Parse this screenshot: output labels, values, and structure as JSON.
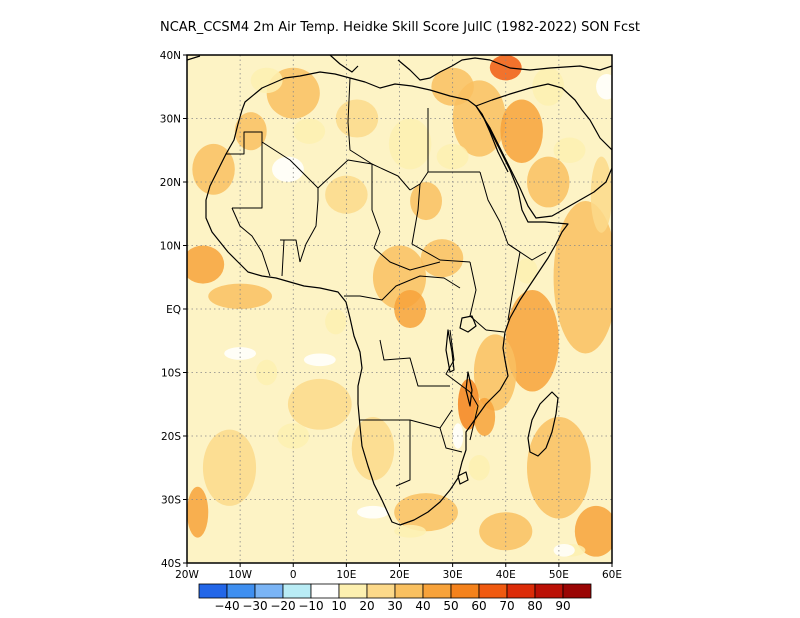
{
  "title": "NCAR_CCSM4  2m Air Temp. Heidke Skill Score JulIC (1982-2022) SON Fcst",
  "map": {
    "lon_range": [
      -20,
      60
    ],
    "lat_range": [
      -40,
      40
    ],
    "lon_ticks": [
      {
        "value": -20,
        "label": "20W"
      },
      {
        "value": -10,
        "label": "10W"
      },
      {
        "value": 0,
        "label": "0"
      },
      {
        "value": 10,
        "label": "10E"
      },
      {
        "value": 20,
        "label": "20E"
      },
      {
        "value": 30,
        "label": "30E"
      },
      {
        "value": 40,
        "label": "40E"
      },
      {
        "value": 50,
        "label": "50E"
      },
      {
        "value": 60,
        "label": "60E"
      }
    ],
    "lat_ticks": [
      {
        "value": 40,
        "label": "40N"
      },
      {
        "value": 30,
        "label": "30N"
      },
      {
        "value": 20,
        "label": "20N"
      },
      {
        "value": 10,
        "label": "10N"
      },
      {
        "value": 0,
        "label": "EQ"
      },
      {
        "value": -10,
        "label": "10S"
      },
      {
        "value": -20,
        "label": "20S"
      },
      {
        "value": -30,
        "label": "30S"
      },
      {
        "value": -40,
        "label": "40S"
      }
    ],
    "gridlines": "dotted",
    "background_color": "#fdf3c5"
  },
  "colorbar": {
    "colors": [
      "#2266e8",
      "#3f8ff0",
      "#7ab4f5",
      "#b9ecf5",
      "#ffffff",
      "#fdf0b0",
      "#fcd98a",
      "#f9c060",
      "#f7a23a",
      "#f4821c",
      "#f05a10",
      "#dc2c08",
      "#bb1106",
      "#9a0504"
    ],
    "labels": [
      "-40",
      "-30",
      "-20",
      "-10",
      "10",
      "20",
      "30",
      "40",
      "50",
      "60",
      "70",
      "80",
      "90"
    ]
  },
  "skill_patches": [
    {
      "lon": 55,
      "lat": 5,
      "rx": 6,
      "ry": 12,
      "level": 30
    },
    {
      "lon": 45,
      "lat": -5,
      "rx": 5,
      "ry": 8,
      "level": 40
    },
    {
      "lon": 50,
      "lat": -25,
      "rx": 6,
      "ry": 8,
      "level": 30
    },
    {
      "lon": 35,
      "lat": 30,
      "rx": 5,
      "ry": 6,
      "level": 30
    },
    {
      "lon": 43,
      "lat": 28,
      "rx": 4,
      "ry": 5,
      "level": 40
    },
    {
      "lon": 48,
      "lat": 20,
      "rx": 4,
      "ry": 4,
      "level": 30
    },
    {
      "lon": 30,
      "lat": 35,
      "rx": 4,
      "ry": 3,
      "level": 30
    },
    {
      "lon": 40,
      "lat": 38,
      "rx": 3,
      "ry": 2,
      "level": 60
    },
    {
      "lon": 20,
      "lat": 5,
      "rx": 5,
      "ry": 5,
      "level": 30
    },
    {
      "lon": 22,
      "lat": 0,
      "rx": 3,
      "ry": 3,
      "level": 40
    },
    {
      "lon": 38,
      "lat": -10,
      "rx": 4,
      "ry": 6,
      "level": 30
    },
    {
      "lon": 33,
      "lat": -15,
      "rx": 2,
      "ry": 4,
      "level": 50
    },
    {
      "lon": 36,
      "lat": -17,
      "rx": 2,
      "ry": 3,
      "level": 40
    },
    {
      "lon": 28,
      "lat": 8,
      "rx": 4,
      "ry": 3,
      "level": 30
    },
    {
      "lon": -17,
      "lat": 7,
      "rx": 4,
      "ry": 3,
      "level": 40
    },
    {
      "lon": -10,
      "lat": 2,
      "rx": 6,
      "ry": 2,
      "level": 30
    },
    {
      "lon": -15,
      "lat": 22,
      "rx": 4,
      "ry": 4,
      "level": 30
    },
    {
      "lon": 25,
      "lat": -32,
      "rx": 6,
      "ry": 3,
      "level": 30
    },
    {
      "lon": 40,
      "lat": -35,
      "rx": 5,
      "ry": 3,
      "level": 30
    },
    {
      "lon": 0,
      "lat": 34,
      "rx": 5,
      "ry": 4,
      "level": 30
    },
    {
      "lon": -8,
      "lat": 28,
      "rx": 3,
      "ry": 3,
      "level": 30
    },
    {
      "lon": 10,
      "lat": 18,
      "rx": 4,
      "ry": 3,
      "level": 20
    },
    {
      "lon": 15,
      "lat": -22,
      "rx": 4,
      "ry": 5,
      "level": 20
    },
    {
      "lon": 5,
      "lat": -15,
      "rx": 6,
      "ry": 4,
      "level": 20
    },
    {
      "lon": -12,
      "lat": -25,
      "rx": 5,
      "ry": 6,
      "level": 20
    },
    {
      "lon": -18,
      "lat": -32,
      "rx": 2,
      "ry": 4,
      "level": 40
    },
    {
      "lon": 57,
      "lat": -35,
      "rx": 4,
      "ry": 4,
      "level": 40
    },
    {
      "lon": 58,
      "lat": 18,
      "rx": 2,
      "ry": 6,
      "level": 20
    },
    {
      "lon": 25,
      "lat": 17,
      "rx": 3,
      "ry": 3,
      "level": 30
    },
    {
      "lon": 12,
      "lat": 30,
      "rx": 4,
      "ry": 3,
      "level": 20
    },
    {
      "lon": 30,
      "lat": 24,
      "rx": 3,
      "ry": 2,
      "level": 10
    },
    {
      "lon": 22,
      "lat": 26,
      "rx": 4,
      "ry": 4,
      "level": 10
    },
    {
      "lon": 3,
      "lat": 28,
      "rx": 3,
      "ry": 2,
      "level": 10
    },
    {
      "lon": 8,
      "lat": -2,
      "rx": 2,
      "ry": 2,
      "level": 10
    },
    {
      "lon": 35,
      "lat": -25,
      "rx": 2,
      "ry": 2,
      "level": 10
    },
    {
      "lon": 22,
      "lat": -35,
      "rx": 3,
      "ry": 1,
      "level": 10
    },
    {
      "lon": -5,
      "lat": 36,
      "rx": 3,
      "ry": 2,
      "level": 10
    },
    {
      "lon": 48,
      "lat": 35,
      "rx": 3,
      "ry": 3,
      "level": 10
    },
    {
      "lon": 52,
      "lat": 25,
      "rx": 3,
      "ry": 2,
      "level": 10
    },
    {
      "lon": 44,
      "lat": 6,
      "rx": 2,
      "ry": 2,
      "level": 10
    },
    {
      "lon": 52,
      "lat": -38,
      "rx": 3,
      "ry": 1,
      "level": 10
    },
    {
      "lon": 0,
      "lat": -20,
      "rx": 3,
      "ry": 2,
      "level": 10
    },
    {
      "lon": -5,
      "lat": -10,
      "rx": 2,
      "ry": 2,
      "level": 10
    },
    {
      "lon": -1,
      "lat": 22,
      "rx": 3,
      "ry": 2,
      "level": -10
    },
    {
      "lon": -10,
      "lat": -7,
      "rx": 3,
      "ry": 1,
      "level": -10
    },
    {
      "lon": 5,
      "lat": -8,
      "rx": 3,
      "ry": 1,
      "level": -10
    },
    {
      "lon": 15,
      "lat": -32,
      "rx": 3,
      "ry": 1,
      "level": -10
    },
    {
      "lon": 51,
      "lat": -38,
      "rx": 2,
      "ry": 1,
      "level": -10
    },
    {
      "lon": 59,
      "lat": 35,
      "rx": 2,
      "ry": 2,
      "level": -10
    },
    {
      "lon": 31,
      "lat": -20,
      "rx": 1,
      "ry": 2,
      "level": -10
    }
  ]
}
